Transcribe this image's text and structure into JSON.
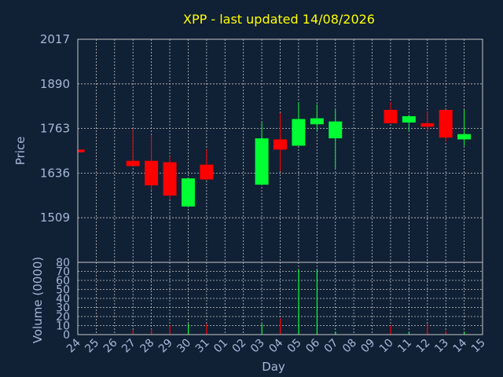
{
  "chart_data": [
    {
      "type": "candlestick",
      "title": "XPP - last updated 14/08/2026",
      "ylabel": "Price",
      "ylim": [
        1382,
        2017
      ],
      "yticks": [
        1509,
        1636,
        1763,
        1890,
        2017
      ],
      "grid": true,
      "colors": {
        "up": "#00ff33",
        "down": "#ff0000"
      },
      "candles": [
        {
          "day": "24",
          "open": 1703,
          "high": 1703,
          "low": 1695,
          "close": 1695
        },
        {
          "day": "27",
          "open": 1671,
          "high": 1763,
          "low": 1656,
          "close": 1656
        },
        {
          "day": "28",
          "open": 1671,
          "high": 1745,
          "low": 1587,
          "close": 1601
        },
        {
          "day": "29",
          "open": 1667,
          "high": 1684,
          "low": 1561,
          "close": 1572
        },
        {
          "day": "30",
          "open": 1541,
          "high": 1621,
          "low": 1541,
          "close": 1621
        },
        {
          "day": "31",
          "open": 1660,
          "high": 1703,
          "low": 1616,
          "close": 1618
        },
        {
          "day": "03",
          "open": 1603,
          "high": 1780,
          "low": 1603,
          "close": 1735
        },
        {
          "day": "04",
          "open": 1732,
          "high": 1807,
          "low": 1641,
          "close": 1703
        },
        {
          "day": "05",
          "open": 1714,
          "high": 1838,
          "low": 1714,
          "close": 1790
        },
        {
          "day": "06",
          "open": 1775,
          "high": 1832,
          "low": 1757,
          "close": 1792
        },
        {
          "day": "07",
          "open": 1735,
          "high": 1816,
          "low": 1650,
          "close": 1783
        },
        {
          "day": "10",
          "open": 1816,
          "high": 1838,
          "low": 1778,
          "close": 1778
        },
        {
          "day": "11",
          "open": 1780,
          "high": 1801,
          "low": 1755,
          "close": 1798
        },
        {
          "day": "12",
          "open": 1778,
          "high": 1812,
          "low": 1755,
          "close": 1768
        },
        {
          "day": "13",
          "open": 1816,
          "high": 1816,
          "low": 1725,
          "close": 1737
        },
        {
          "day": "14",
          "open": 1732,
          "high": 1816,
          "low": 1714,
          "close": 1747
        }
      ]
    },
    {
      "type": "bar",
      "ylabel": "Volume (0000)",
      "ylim": [
        0,
        80
      ],
      "yticks": [
        0,
        10,
        20,
        30,
        40,
        50,
        60,
        70,
        80
      ],
      "grid": true,
      "xlabel": "Day",
      "categories": [
        "24",
        "25",
        "26",
        "27",
        "28",
        "29",
        "30",
        "31",
        "01",
        "02",
        "03",
        "04",
        "05",
        "06",
        "07",
        "08",
        "09",
        "10",
        "11",
        "12",
        "13",
        "14",
        "15"
      ],
      "bars": [
        {
          "day": "27",
          "value": 5,
          "color": "#ff0000"
        },
        {
          "day": "28",
          "value": 6,
          "color": "#ff0000"
        },
        {
          "day": "29",
          "value": 10,
          "color": "#ff0000"
        },
        {
          "day": "30",
          "value": 12,
          "color": "#00ff33"
        },
        {
          "day": "31",
          "value": 12,
          "color": "#ff0000"
        },
        {
          "day": "03",
          "value": 12,
          "color": "#00ff33"
        },
        {
          "day": "04",
          "value": 18,
          "color": "#ff0000"
        },
        {
          "day": "05",
          "value": 72,
          "color": "#00ff33"
        },
        {
          "day": "06",
          "value": 72,
          "color": "#00ff33"
        },
        {
          "day": "07",
          "value": 3,
          "color": "#00ff33"
        },
        {
          "day": "10",
          "value": 10,
          "color": "#ff0000"
        },
        {
          "day": "11",
          "value": 3,
          "color": "#00ff33"
        },
        {
          "day": "12",
          "value": 12,
          "color": "#ff0000"
        },
        {
          "day": "13",
          "value": 4,
          "color": "#ff0000"
        },
        {
          "day": "14",
          "value": 3,
          "color": "#00ff33"
        }
      ]
    }
  ]
}
